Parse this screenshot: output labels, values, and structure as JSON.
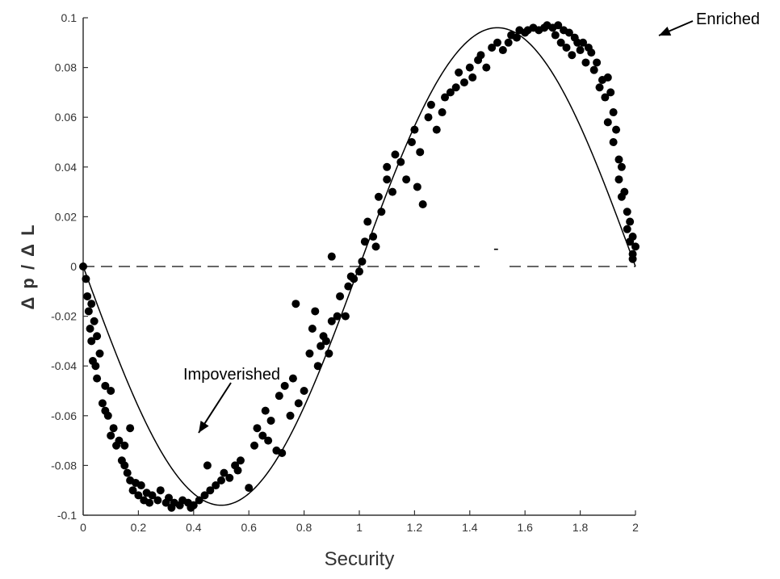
{
  "chart_data": {
    "type": "scatter",
    "title": "",
    "xlabel": "Security",
    "ylabel": "Δ p / Δ L",
    "xlim": [
      0,
      2
    ],
    "ylim": [
      -0.1,
      0.1
    ],
    "x_ticks": [
      "0",
      "0.2",
      "0.4",
      "0.6",
      "0.8",
      "1",
      "1.2",
      "1.4",
      "1.6",
      "1.8",
      "2"
    ],
    "y_ticks": [
      "0.1",
      "0.08",
      "0.06",
      "0.04",
      "0.02",
      "0",
      "-0.02",
      "-0.04",
      "-0.06",
      "-0.08",
      "-0.1"
    ],
    "grid": false,
    "zero_line": "dashed",
    "series": [
      {
        "kind": "points",
        "points": [
          [
            0.0,
            0.0
          ],
          [
            0.01,
            -0.005
          ],
          [
            0.015,
            -0.012
          ],
          [
            0.02,
            -0.018
          ],
          [
            0.025,
            -0.025
          ],
          [
            0.03,
            -0.015
          ],
          [
            0.03,
            -0.03
          ],
          [
            0.035,
            -0.038
          ],
          [
            0.04,
            -0.022
          ],
          [
            0.045,
            -0.04
          ],
          [
            0.05,
            -0.028
          ],
          [
            0.05,
            -0.045
          ],
          [
            0.06,
            -0.035
          ],
          [
            0.07,
            -0.055
          ],
          [
            0.08,
            -0.048
          ],
          [
            0.08,
            -0.058
          ],
          [
            0.09,
            -0.06
          ],
          [
            0.1,
            -0.05
          ],
          [
            0.1,
            -0.068
          ],
          [
            0.11,
            -0.065
          ],
          [
            0.12,
            -0.072
          ],
          [
            0.13,
            -0.07
          ],
          [
            0.14,
            -0.078
          ],
          [
            0.15,
            -0.08
          ],
          [
            0.15,
            -0.072
          ],
          [
            0.16,
            -0.083
          ],
          [
            0.17,
            -0.065
          ],
          [
            0.17,
            -0.086
          ],
          [
            0.18,
            -0.09
          ],
          [
            0.19,
            -0.087
          ],
          [
            0.2,
            -0.092
          ],
          [
            0.21,
            -0.088
          ],
          [
            0.22,
            -0.094
          ],
          [
            0.23,
            -0.091
          ],
          [
            0.24,
            -0.095
          ],
          [
            0.25,
            -0.092
          ],
          [
            0.27,
            -0.094
          ],
          [
            0.28,
            -0.09
          ],
          [
            0.3,
            -0.095
          ],
          [
            0.31,
            -0.093
          ],
          [
            0.32,
            -0.097
          ],
          [
            0.33,
            -0.095
          ],
          [
            0.35,
            -0.096
          ],
          [
            0.36,
            -0.094
          ],
          [
            0.38,
            -0.095
          ],
          [
            0.39,
            -0.097
          ],
          [
            0.4,
            -0.096
          ],
          [
            0.42,
            -0.094
          ],
          [
            0.44,
            -0.092
          ],
          [
            0.45,
            -0.08
          ],
          [
            0.46,
            -0.09
          ],
          [
            0.48,
            -0.088
          ],
          [
            0.5,
            -0.086
          ],
          [
            0.51,
            -0.083
          ],
          [
            0.53,
            -0.085
          ],
          [
            0.55,
            -0.08
          ],
          [
            0.56,
            -0.082
          ],
          [
            0.57,
            -0.078
          ],
          [
            0.6,
            -0.089
          ],
          [
            0.62,
            -0.072
          ],
          [
            0.63,
            -0.065
          ],
          [
            0.65,
            -0.068
          ],
          [
            0.66,
            -0.058
          ],
          [
            0.67,
            -0.07
          ],
          [
            0.68,
            -0.062
          ],
          [
            0.7,
            -0.074
          ],
          [
            0.71,
            -0.052
          ],
          [
            0.72,
            -0.075
          ],
          [
            0.73,
            -0.048
          ],
          [
            0.75,
            -0.06
          ],
          [
            0.76,
            -0.045
          ],
          [
            0.77,
            -0.015
          ],
          [
            0.78,
            -0.055
          ],
          [
            0.8,
            -0.05
          ],
          [
            0.82,
            -0.035
          ],
          [
            0.83,
            -0.025
          ],
          [
            0.84,
            -0.018
          ],
          [
            0.85,
            -0.04
          ],
          [
            0.86,
            -0.032
          ],
          [
            0.87,
            -0.028
          ],
          [
            0.88,
            -0.03
          ],
          [
            0.89,
            -0.035
          ],
          [
            0.9,
            -0.022
          ],
          [
            0.9,
            0.004
          ],
          [
            0.92,
            -0.02
          ],
          [
            0.93,
            -0.012
          ],
          [
            0.95,
            -0.02
          ],
          [
            0.96,
            -0.008
          ],
          [
            0.97,
            -0.004
          ],
          [
            0.98,
            -0.005
          ],
          [
            1.0,
            -0.002
          ],
          [
            1.01,
            0.002
          ],
          [
            1.02,
            0.01
          ],
          [
            1.03,
            0.018
          ],
          [
            1.05,
            0.012
          ],
          [
            1.06,
            0.008
          ],
          [
            1.07,
            0.028
          ],
          [
            1.08,
            0.022
          ],
          [
            1.1,
            0.035
          ],
          [
            1.1,
            0.04
          ],
          [
            1.12,
            0.03
          ],
          [
            1.13,
            0.045
          ],
          [
            1.15,
            0.042
          ],
          [
            1.17,
            0.035
          ],
          [
            1.19,
            0.05
          ],
          [
            1.2,
            0.055
          ],
          [
            1.21,
            0.032
          ],
          [
            1.22,
            0.046
          ],
          [
            1.23,
            0.025
          ],
          [
            1.25,
            0.06
          ],
          [
            1.26,
            0.065
          ],
          [
            1.28,
            0.055
          ],
          [
            1.3,
            0.062
          ],
          [
            1.31,
            0.068
          ],
          [
            1.33,
            0.07
          ],
          [
            1.35,
            0.072
          ],
          [
            1.36,
            0.078
          ],
          [
            1.38,
            0.074
          ],
          [
            1.4,
            0.08
          ],
          [
            1.41,
            0.076
          ],
          [
            1.43,
            0.083
          ],
          [
            1.44,
            0.085
          ],
          [
            1.46,
            0.08
          ],
          [
            1.48,
            0.088
          ],
          [
            1.5,
            0.09
          ],
          [
            1.52,
            0.087
          ],
          [
            1.54,
            0.09
          ],
          [
            1.55,
            0.093
          ],
          [
            1.57,
            0.092
          ],
          [
            1.58,
            0.095
          ],
          [
            1.6,
            0.094
          ],
          [
            1.61,
            0.095
          ],
          [
            1.63,
            0.096
          ],
          [
            1.65,
            0.095
          ],
          [
            1.67,
            0.096
          ],
          [
            1.68,
            0.097
          ],
          [
            1.7,
            0.096
          ],
          [
            1.71,
            0.093
          ],
          [
            1.72,
            0.097
          ],
          [
            1.73,
            0.09
          ],
          [
            1.74,
            0.095
          ],
          [
            1.75,
            0.088
          ],
          [
            1.76,
            0.094
          ],
          [
            1.77,
            0.085
          ],
          [
            1.78,
            0.092
          ],
          [
            1.79,
            0.09
          ],
          [
            1.8,
            0.087
          ],
          [
            1.81,
            0.09
          ],
          [
            1.82,
            0.082
          ],
          [
            1.83,
            0.088
          ],
          [
            1.84,
            0.086
          ],
          [
            1.85,
            0.079
          ],
          [
            1.86,
            0.082
          ],
          [
            1.87,
            0.072
          ],
          [
            1.88,
            0.075
          ],
          [
            1.89,
            0.068
          ],
          [
            1.9,
            0.076
          ],
          [
            1.9,
            0.058
          ],
          [
            1.91,
            0.07
          ],
          [
            1.92,
            0.062
          ],
          [
            1.92,
            0.05
          ],
          [
            1.93,
            0.055
          ],
          [
            1.94,
            0.043
          ],
          [
            1.94,
            0.035
          ],
          [
            1.95,
            0.04
          ],
          [
            1.95,
            0.028
          ],
          [
            1.96,
            0.03
          ],
          [
            1.97,
            0.022
          ],
          [
            1.97,
            0.015
          ],
          [
            1.98,
            0.018
          ],
          [
            1.98,
            0.01
          ],
          [
            1.99,
            0.012
          ],
          [
            1.99,
            0.005
          ],
          [
            2.0,
            0.008
          ],
          [
            1.99,
            0.003
          ]
        ]
      },
      {
        "kind": "fit-curve",
        "formula": "y = -0.096 * sin(pi * x)",
        "amplitude": 0.096
      }
    ],
    "annotations": [
      {
        "text": "Impoverished",
        "arrow": "down-left"
      },
      {
        "text": "Enriched",
        "arrow": "down-left"
      },
      {
        "text": "-",
        "arrow": "none"
      }
    ]
  }
}
